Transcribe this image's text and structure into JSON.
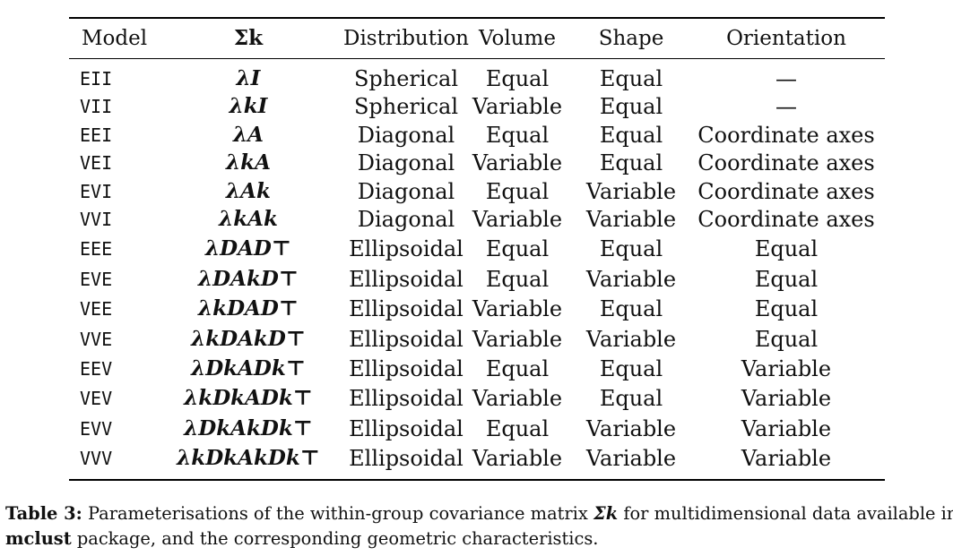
{
  "table": {
    "headers": {
      "model": "Model",
      "sigma": "Σk",
      "distribution": "Distribution",
      "volume": "Volume",
      "shape": "Shape",
      "orientation": "Orientation"
    },
    "rows": [
      {
        "model": "EII",
        "sigma": "λI",
        "distribution": "Spherical",
        "volume": "Equal",
        "shape": "Equal",
        "orientation": "—"
      },
      {
        "model": "VII",
        "sigma": "λkI",
        "distribution": "Spherical",
        "volume": "Variable",
        "shape": "Equal",
        "orientation": "—"
      },
      {
        "model": "EEI",
        "sigma": "λA",
        "distribution": "Diagonal",
        "volume": "Equal",
        "shape": "Equal",
        "orientation": "Coordinate axes"
      },
      {
        "model": "VEI",
        "sigma": "λkA",
        "distribution": "Diagonal",
        "volume": "Variable",
        "shape": "Equal",
        "orientation": "Coordinate axes"
      },
      {
        "model": "EVI",
        "sigma": "λAk",
        "distribution": "Diagonal",
        "volume": "Equal",
        "shape": "Variable",
        "orientation": "Coordinate axes"
      },
      {
        "model": "VVI",
        "sigma": "λkAk",
        "distribution": "Diagonal",
        "volume": "Variable",
        "shape": "Variable",
        "orientation": "Coordinate axes"
      },
      {
        "model": "EEE",
        "sigma": "λDAD⊤",
        "distribution": "Ellipsoidal",
        "volume": "Equal",
        "shape": "Equal",
        "orientation": "Equal"
      },
      {
        "model": "EVE",
        "sigma": "λDAkD⊤",
        "distribution": "Ellipsoidal",
        "volume": "Equal",
        "shape": "Variable",
        "orientation": "Equal"
      },
      {
        "model": "VEE",
        "sigma": "λkDAD⊤",
        "distribution": "Ellipsoidal",
        "volume": "Variable",
        "shape": "Equal",
        "orientation": "Equal"
      },
      {
        "model": "VVE",
        "sigma": "λkDAkD⊤",
        "distribution": "Ellipsoidal",
        "volume": "Variable",
        "shape": "Variable",
        "orientation": "Equal"
      },
      {
        "model": "EEV",
        "sigma": "λDkADk⊤",
        "distribution": "Ellipsoidal",
        "volume": "Equal",
        "shape": "Equal",
        "orientation": "Variable"
      },
      {
        "model": "VEV",
        "sigma": "λkDkADk⊤",
        "distribution": "Ellipsoidal",
        "volume": "Variable",
        "shape": "Equal",
        "orientation": "Variable"
      },
      {
        "model": "EVV",
        "sigma": "λDkAkDk⊤",
        "distribution": "Ellipsoidal",
        "volume": "Equal",
        "shape": "Variable",
        "orientation": "Variable"
      },
      {
        "model": "VVV",
        "sigma": "λkDkAkDk⊤",
        "distribution": "Ellipsoidal",
        "volume": "Variable",
        "shape": "Variable",
        "orientation": "Variable"
      }
    ]
  },
  "caption": {
    "label": "Table 3:",
    "text_before": "Parameterisations of the within-group covariance matrix",
    "symbol": "Σk",
    "text_middle": "for multidimensional data available in the",
    "package": "mclust",
    "text_after": "package, and the corresponding geometric characteristics."
  }
}
